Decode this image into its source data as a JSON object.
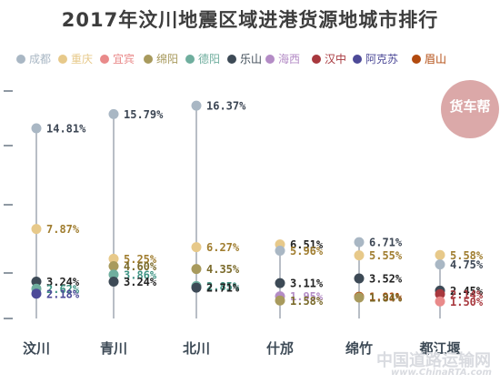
{
  "chart_data": {
    "type": "scatter",
    "title": "2017年汶川地震区域进港货源地城市排行",
    "categories": [
      "汶川",
      "青川",
      "北川",
      "什邡",
      "绵竹",
      "都江堰"
    ],
    "legend_placement": "top",
    "series": [
      {
        "name": "成都",
        "color": "#a9b7c4",
        "values": [
          14.81,
          15.79,
          16.37,
          5.96,
          6.71,
          4.75
        ]
      },
      {
        "name": "重庆",
        "color": "#e7c98a",
        "values": [
          7.87,
          5.25,
          6.27,
          6.51,
          5.55,
          5.58
        ]
      },
      {
        "name": "宜宾",
        "color": "#e98a8a",
        "values": [
          null,
          null,
          null,
          null,
          null,
          1.5
        ]
      },
      {
        "name": "绵阳",
        "color": "#a89a5d",
        "values": [
          null,
          4.6,
          4.35,
          1.58,
          1.84,
          null
        ]
      },
      {
        "name": "德阳",
        "color": "#6fae9e",
        "values": [
          2.62,
          3.86,
          2.85,
          null,
          null,
          null
        ]
      },
      {
        "name": "乐山",
        "color": "#3d4a56",
        "values": [
          3.24,
          3.24,
          2.71,
          3.11,
          3.52,
          2.45
        ]
      },
      {
        "name": "海西",
        "color": "#b48cc6",
        "values": [
          null,
          null,
          null,
          1.95,
          null,
          null
        ]
      },
      {
        "name": "汉中",
        "color": "#a8383e",
        "values": [
          null,
          null,
          null,
          null,
          null,
          2.14
        ]
      },
      {
        "name": "阿克苏",
        "color": "#4d4a98",
        "values": [
          2.18,
          null,
          null,
          null,
          null,
          null
        ]
      },
      {
        "name": "眉山",
        "color": "#b24a0e",
        "values": [
          null,
          null,
          null,
          null,
          1.91,
          null
        ]
      }
    ],
    "points": [
      {
        "city": "汶川",
        "series": "成都",
        "value": 14.81,
        "label": "14.81%",
        "label_color": "#3c4654"
      },
      {
        "city": "汶川",
        "series": "重庆",
        "value": 7.87,
        "label": "7.87%",
        "label_color": "#a07d2f"
      },
      {
        "city": "汶川",
        "series": "乐山",
        "value": 3.24,
        "label": "3.24%",
        "label_color": "#222222"
      },
      {
        "city": "汶川",
        "series": "德阳",
        "value": 2.62,
        "label": "2.62%",
        "label_color": "#3f9484"
      },
      {
        "city": "汶川",
        "series": "阿克苏",
        "value": 2.18,
        "label": "2.18%",
        "label_color": "#4d4a98"
      },
      {
        "city": "青川",
        "series": "成都",
        "value": 15.79,
        "label": "15.79%",
        "label_color": "#3c4654"
      },
      {
        "city": "青川",
        "series": "重庆",
        "value": 5.25,
        "label": "5.25%",
        "label_color": "#a07d2f"
      },
      {
        "city": "青川",
        "series": "绵阳",
        "value": 4.6,
        "label": "4.60%",
        "label_color": "#7a6a2a"
      },
      {
        "city": "青川",
        "series": "德阳",
        "value": 3.86,
        "label": "3.86%",
        "label_color": "#3f9484"
      },
      {
        "city": "青川",
        "series": "乐山",
        "value": 3.24,
        "label": "3.24%",
        "label_color": "#222222"
      },
      {
        "city": "北川",
        "series": "成都",
        "value": 16.37,
        "label": "16.37%",
        "label_color": "#3c4654"
      },
      {
        "city": "北川",
        "series": "重庆",
        "value": 6.27,
        "label": "6.27%",
        "label_color": "#a07d2f"
      },
      {
        "city": "北川",
        "series": "绵阳",
        "value": 4.35,
        "label": "4.35%",
        "label_color": "#7a6a2a"
      },
      {
        "city": "北川",
        "series": "德阳",
        "value": 2.85,
        "label": "2.85%",
        "label_color": "#3f9484"
      },
      {
        "city": "北川",
        "series": "乐山",
        "value": 2.71,
        "label": "2.71%",
        "label_color": "#222222"
      },
      {
        "city": "什邡",
        "series": "重庆",
        "value": 6.51,
        "label": "6.51%",
        "label_color": "#222222"
      },
      {
        "city": "什邡",
        "series": "成都",
        "value": 5.96,
        "label": "5.96%",
        "label_color": "#a07d2f"
      },
      {
        "city": "什邡",
        "series": "乐山",
        "value": 3.11,
        "label": "3.11%",
        "label_color": "#222222"
      },
      {
        "city": "什邡",
        "series": "海西",
        "value": 1.95,
        "label": "1.95%",
        "label_color": "#b48cc6"
      },
      {
        "city": "什邡",
        "series": "绵阳",
        "value": 1.58,
        "label": "1.58%",
        "label_color": "#7a6a2a"
      },
      {
        "city": "绵竹",
        "series": "成都",
        "value": 6.71,
        "label": "6.71%",
        "label_color": "#3c4654"
      },
      {
        "city": "绵竹",
        "series": "重庆",
        "value": 5.55,
        "label": "5.55%",
        "label_color": "#a07d2f"
      },
      {
        "city": "绵竹",
        "series": "乐山",
        "value": 3.52,
        "label": "3.52%",
        "label_color": "#222222"
      },
      {
        "city": "绵竹",
        "series": "眉山",
        "value": 1.91,
        "label": "1.91%",
        "label_color": "#b24a0e"
      },
      {
        "city": "绵竹",
        "series": "绵阳",
        "value": 1.84,
        "label": "1.84%",
        "label_color": "#7a6a2a"
      },
      {
        "city": "都江堰",
        "series": "重庆",
        "value": 5.58,
        "label": "5.58%",
        "label_color": "#a07d2f"
      },
      {
        "city": "都江堰",
        "series": "成都",
        "value": 4.75,
        "label": "4.75%",
        "label_color": "#3c4654"
      },
      {
        "city": "都江堰",
        "series": "乐山",
        "value": 2.45,
        "label": "2.45%",
        "label_color": "#222222"
      },
      {
        "city": "都江堰",
        "series": "汉中",
        "value": 2.14,
        "label": "2.14%",
        "label_color": "#a8383e"
      },
      {
        "city": "都江堰",
        "series": "宜宾",
        "value": 1.5,
        "label": "1.50%",
        "label_color": "#a8383e"
      }
    ],
    "xlabel": "",
    "ylabel": "",
    "ylim": [
      0,
      18
    ],
    "grid": false
  },
  "logo_text": "货车帮",
  "watermark": {
    "cn": "中国道路运输网",
    "url": "www.ChinaRTA.com"
  },
  "colors": {
    "stem": "#9aa3ad",
    "axis_tick": "#8f99a3",
    "category_text": "#3d4a56"
  }
}
